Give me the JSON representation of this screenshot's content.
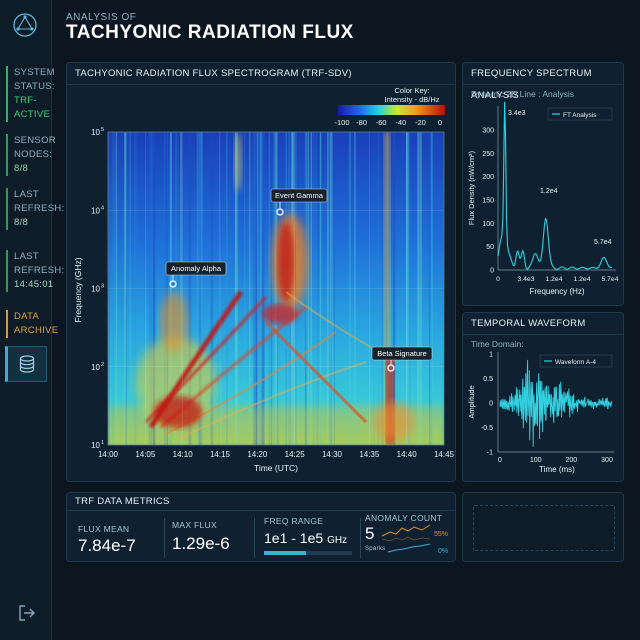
{
  "sidebar": {
    "status_label": "SYSTEM STATUS:",
    "status_value": "TRF-ACTIVE",
    "sensor_label": "SENSOR NODES:",
    "sensor_value": "8/8",
    "refresh1_label": "LAST REFRESH:",
    "refresh1_value": "8/8",
    "refresh2_label": "LAST REFRESH:",
    "refresh2_value": "14:45:01",
    "archive_label": "DATA ARCHIVE",
    "icons": [
      "logo-icon",
      "database-icon",
      "logout-icon"
    ]
  },
  "header": {
    "small": "ANALYSIS OF",
    "title": "TACHYONIC RADIATION FLUX"
  },
  "spectrogram": {
    "title": "TACHYONIC RADIATION FLUX SPECTROGRAM (TRF-SDV)",
    "color_key_title": "Color Key:",
    "color_key_sub": "Intensity - dB/Hz",
    "color_ticks": [
      "-100",
      "-80",
      "-60",
      "-40",
      "-20",
      "0"
    ],
    "y_label": "Frequency (GHz)",
    "x_label": "Time (UTC)",
    "x_ticks": [
      "14:00",
      "14:05",
      "14:10",
      "14:15",
      "14:20",
      "14:25",
      "14:30",
      "14:35",
      "14:40",
      "14:45"
    ],
    "y_ticks": [
      {
        "base": "10",
        "exp": "5"
      },
      {
        "base": "10",
        "exp": "4"
      },
      {
        "base": "10",
        "exp": "3"
      },
      {
        "base": "10",
        "exp": "2"
      },
      {
        "base": "10",
        "exp": "1"
      }
    ],
    "annotations": [
      "Event Gamma",
      "Anomaly Alpha",
      "Beta Signature"
    ]
  },
  "spectrum": {
    "title": "FREQUENCY SPECTRUM ANALYSIS",
    "subtitle": "Dynamic 2D Line : Analysis",
    "legend": "FT Analysis",
    "y_label": "Flux Density (nW/cm²)",
    "x_label": "Frequency (Hz)",
    "y_ticks": [
      "300",
      "250",
      "200",
      "150",
      "100",
      "50",
      "0"
    ],
    "x_ticks": [
      "0",
      "3.4e3",
      "1.2e4",
      "1.2e4",
      "5.7e4"
    ],
    "peak_labels": [
      "3.4e3",
      "1.2e4",
      "5.7e4"
    ]
  },
  "waveform": {
    "title": "TEMPORAL WAVEFORM",
    "subtitle": "Time Domain:",
    "legend": "Waveform A-4",
    "y_label": "Amplitude",
    "x_label": "Time (ms)",
    "y_ticks": [
      "1",
      "0.5",
      "0",
      "-0.5",
      "-1"
    ],
    "x_ticks": [
      "0",
      "100",
      "200",
      "300"
    ]
  },
  "metrics": {
    "title": "TRF DATA METRICS",
    "flux_mean_label": "FLUX MEAN",
    "flux_mean_value": "7.84e-7",
    "max_flux_label": "MAX FLUX",
    "max_flux_value": "1.29e-6",
    "freq_range_label": "FREQ RANGE",
    "freq_range_value": "1e1 - 1e5",
    "freq_range_unit": "GHz",
    "anomaly_label": "ANOMALY COUNT",
    "anomaly_value": "5",
    "anomaly_pct_top": "55%",
    "anomaly_pct_bottom": "0%",
    "sparks_label": "Sparks"
  },
  "colors": {
    "accent": "#3ab0d8",
    "status_green": "#3fd07a",
    "archive_orange": "#e0a040",
    "line_cyan": "#34d0e0"
  }
}
